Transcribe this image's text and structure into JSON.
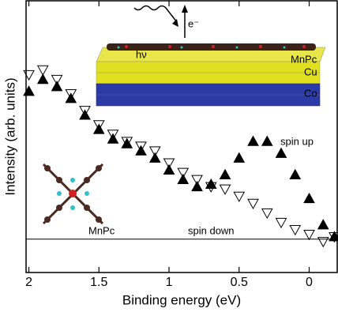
{
  "chart_data": {
    "type": "scatter",
    "x_label": "Binding energy (eV)",
    "y_label": "Intensity (arb. units)",
    "x": [
      2.0,
      1.9,
      1.8,
      1.7,
      1.6,
      1.5,
      1.4,
      1.3,
      1.2,
      1.1,
      1.0,
      0.9,
      0.8,
      0.7,
      0.6,
      0.5,
      0.4,
      0.3,
      0.2,
      0.1,
      0.0,
      -0.1,
      -0.18
    ],
    "series": [
      {
        "name": "spin up",
        "color": "#000000",
        "marker": "triangle-up",
        "filled": true,
        "values": [
          62,
          67,
          64,
          59,
          52,
          46,
          42,
          40,
          37,
          34,
          29,
          25,
          22,
          23,
          27,
          34,
          41,
          41,
          36,
          27,
          17,
          6,
          1
        ]
      },
      {
        "name": "spin down",
        "color": "#000000",
        "marker": "triangle-down",
        "filled": false,
        "values": [
          69,
          71,
          67,
          61,
          54,
          48,
          44,
          41,
          39,
          37,
          32,
          28,
          25,
          22,
          21,
          18,
          15,
          11,
          7,
          4,
          2,
          -1,
          1
        ]
      }
    ],
    "xlim": [
      2.02,
      -0.2
    ],
    "xticks": [
      2,
      1.5,
      1,
      0.5,
      0
    ],
    "ylim": [
      -14,
      100
    ],
    "reference_line": 0,
    "inset_labels": [
      "MnPc",
      "Cu",
      "Co",
      "hν",
      "e⁻"
    ],
    "molecule_label": "MnPc"
  }
}
